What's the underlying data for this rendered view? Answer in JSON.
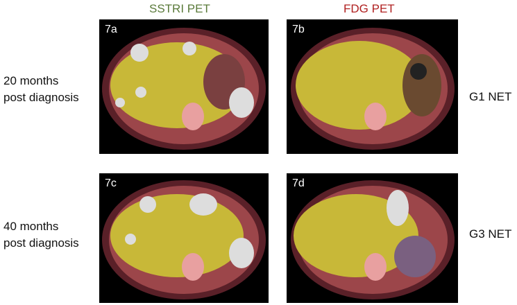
{
  "headers": {
    "left": "SSTRI PET",
    "right": "FDG PET",
    "left_color": "#5a7a3a",
    "right_color": "#b02020"
  },
  "rows": [
    {
      "time_line1": "20 months",
      "time_line2": "post diagnosis",
      "grade": "G1 NET"
    },
    {
      "time_line1": "40 months",
      "time_line2": "post diagnosis",
      "grade": "G3 NET"
    }
  ],
  "panels": [
    {
      "label": "7a"
    },
    {
      "label": "7b"
    },
    {
      "label": "7c"
    },
    {
      "label": "7d"
    }
  ]
}
